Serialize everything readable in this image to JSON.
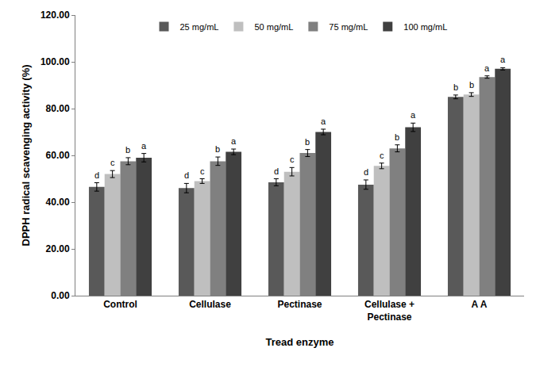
{
  "chart_data": {
    "type": "bar",
    "x_label": "Tread enzyme",
    "y_label": "DPPH radical scavenging activity (%)",
    "categories": [
      "Control",
      "Cellulase",
      "Pectinase",
      "Cellulase + Pectinase",
      "A A"
    ],
    "series": [
      {
        "name": "25 mg/mL",
        "color": "#595959",
        "values": [
          46.5,
          46,
          48.5,
          47.5,
          85
        ],
        "errors": [
          1.8,
          2,
          1.5,
          2,
          0.8
        ],
        "letters": [
          "d",
          "d",
          "d",
          "d",
          "b"
        ]
      },
      {
        "name": "50 mg/mL",
        "color": "#bfbfbf",
        "values": [
          52,
          49,
          53,
          55.5,
          86
        ],
        "errors": [
          1.5,
          1,
          1.8,
          1.2,
          0.8
        ],
        "letters": [
          "c",
          "c",
          "c",
          "c",
          "b"
        ]
      },
      {
        "name": "75 mg/mL",
        "color": "#808080",
        "values": [
          57.5,
          57.5,
          61,
          63,
          93.5
        ],
        "errors": [
          1.5,
          1.8,
          1.5,
          1.5,
          0.5
        ],
        "letters": [
          "b",
          "b",
          "b",
          "b",
          "a"
        ]
      },
      {
        "name": "100 mg/mL",
        "color": "#404040",
        "values": [
          59,
          61.5,
          70,
          72,
          97
        ],
        "errors": [
          1.8,
          1.2,
          1.2,
          1.8,
          0.5
        ],
        "letters": [
          "a",
          "a",
          "a",
          "a",
          "a"
        ]
      }
    ],
    "ylim": [
      0,
      120
    ],
    "yticks": [
      {
        "value": 0,
        "label": "0.00"
      },
      {
        "value": 20,
        "label": "20.00"
      },
      {
        "value": 40,
        "label": "40.00"
      },
      {
        "value": 60,
        "label": "60.00"
      },
      {
        "value": 80,
        "label": "80.00"
      },
      {
        "value": 100,
        "label": "100.00"
      },
      {
        "value": 120,
        "label": "120.00"
      }
    ],
    "legend": "top",
    "grid": false
  }
}
